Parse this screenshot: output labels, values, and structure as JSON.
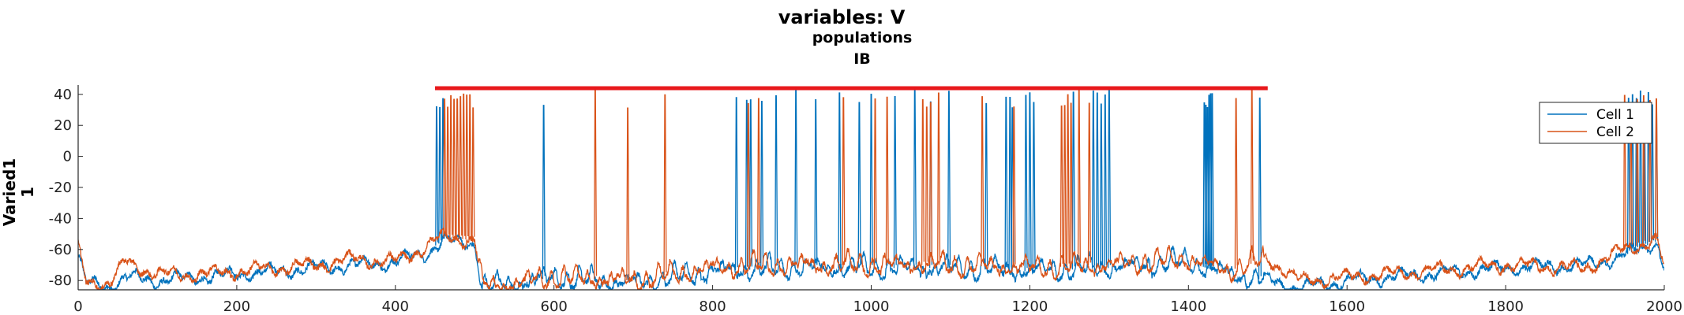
{
  "chart_data": {
    "type": "line",
    "title": "variables: V",
    "subtitle_line1": "populations",
    "subtitle_line2": "IB",
    "ylabel_line1": "Varied1",
    "ylabel_line2": "1",
    "xlabel": "",
    "xlim": [
      0,
      2000
    ],
    "ylim": [
      -86,
      46
    ],
    "x_ticks": [
      0,
      200,
      400,
      600,
      800,
      1000,
      1200,
      1400,
      1600,
      1800,
      2000
    ],
    "y_ticks": [
      40,
      20,
      0,
      -20,
      -40,
      -60,
      -80
    ],
    "grid": false,
    "legend_position": "top-right",
    "stimulus_bar": {
      "x_start": 450,
      "x_end": 1500,
      "y": 44,
      "color": "#e8191c"
    },
    "series": [
      {
        "name": "Cell 1",
        "color": "#0072bd",
        "baseline": [
          [
            0,
            -64
          ],
          [
            10,
            -82
          ],
          [
            40,
            -84
          ],
          [
            60,
            -78
          ],
          [
            100,
            -80
          ],
          [
            150,
            -78
          ],
          [
            200,
            -76
          ],
          [
            250,
            -74
          ],
          [
            300,
            -72
          ],
          [
            350,
            -70
          ],
          [
            400,
            -68
          ],
          [
            440,
            -62
          ],
          [
            450,
            -58
          ],
          [
            460,
            -55
          ],
          [
            500,
            -56
          ],
          [
            510,
            -84
          ],
          [
            550,
            -82
          ],
          [
            600,
            -78
          ],
          [
            700,
            -82
          ],
          [
            800,
            -74
          ],
          [
            900,
            -72
          ],
          [
            1000,
            -72
          ],
          [
            1100,
            -72
          ],
          [
            1200,
            -74
          ],
          [
            1300,
            -72
          ],
          [
            1400,
            -68
          ],
          [
            1450,
            -76
          ],
          [
            1500,
            -80
          ],
          [
            1540,
            -85
          ],
          [
            1600,
            -80
          ],
          [
            1700,
            -76
          ],
          [
            1800,
            -72
          ],
          [
            1900,
            -70
          ],
          [
            1950,
            -64
          ],
          [
            1990,
            -55
          ],
          [
            2000,
            -72
          ]
        ],
        "spikes": [
          452,
          456,
          460,
          587,
          830,
          843,
          848,
          862,
          880,
          905,
          930,
          960,
          985,
          1000,
          1030,
          1055,
          1075,
          1098,
          1145,
          1170,
          1175,
          1178,
          1195,
          1200,
          1205,
          1255,
          1280,
          1285,
          1290,
          1295,
          1300,
          1420,
          1422,
          1424,
          1426,
          1428,
          1430,
          1490,
          1955,
          1960,
          1965,
          1970,
          1975,
          1980,
          1985,
          1990
        ]
      },
      {
        "name": "Cell 2",
        "color": "#d95319",
        "baseline": [
          [
            0,
            -60
          ],
          [
            10,
            -80
          ],
          [
            40,
            -82
          ],
          [
            60,
            -68
          ],
          [
            100,
            -76
          ],
          [
            150,
            -76
          ],
          [
            200,
            -74
          ],
          [
            250,
            -72
          ],
          [
            300,
            -70
          ],
          [
            350,
            -66
          ],
          [
            400,
            -68
          ],
          [
            440,
            -58
          ],
          [
            450,
            -54
          ],
          [
            460,
            -52
          ],
          [
            500,
            -54
          ],
          [
            510,
            -84
          ],
          [
            550,
            -82
          ],
          [
            600,
            -78
          ],
          [
            700,
            -80
          ],
          [
            800,
            -72
          ],
          [
            900,
            -70
          ],
          [
            1000,
            -70
          ],
          [
            1100,
            -70
          ],
          [
            1200,
            -72
          ],
          [
            1300,
            -70
          ],
          [
            1400,
            -66
          ],
          [
            1450,
            -74
          ],
          [
            1500,
            -66
          ],
          [
            1540,
            -80
          ],
          [
            1600,
            -78
          ],
          [
            1700,
            -74
          ],
          [
            1800,
            -70
          ],
          [
            1900,
            -72
          ],
          [
            1950,
            -60
          ],
          [
            1990,
            -54
          ],
          [
            2000,
            -72
          ]
        ],
        "spikes": [
          462,
          466,
          470,
          474,
          478,
          482,
          486,
          490,
          494,
          498,
          652,
          693,
          740,
          845,
          858,
          965,
          1005,
          1020,
          1065,
          1070,
          1075,
          1085,
          1140,
          1180,
          1240,
          1244,
          1248,
          1252,
          1262,
          1275,
          1460,
          1480,
          1950,
          1958,
          1966,
          1974,
          1982,
          1990
        ]
      }
    ]
  }
}
